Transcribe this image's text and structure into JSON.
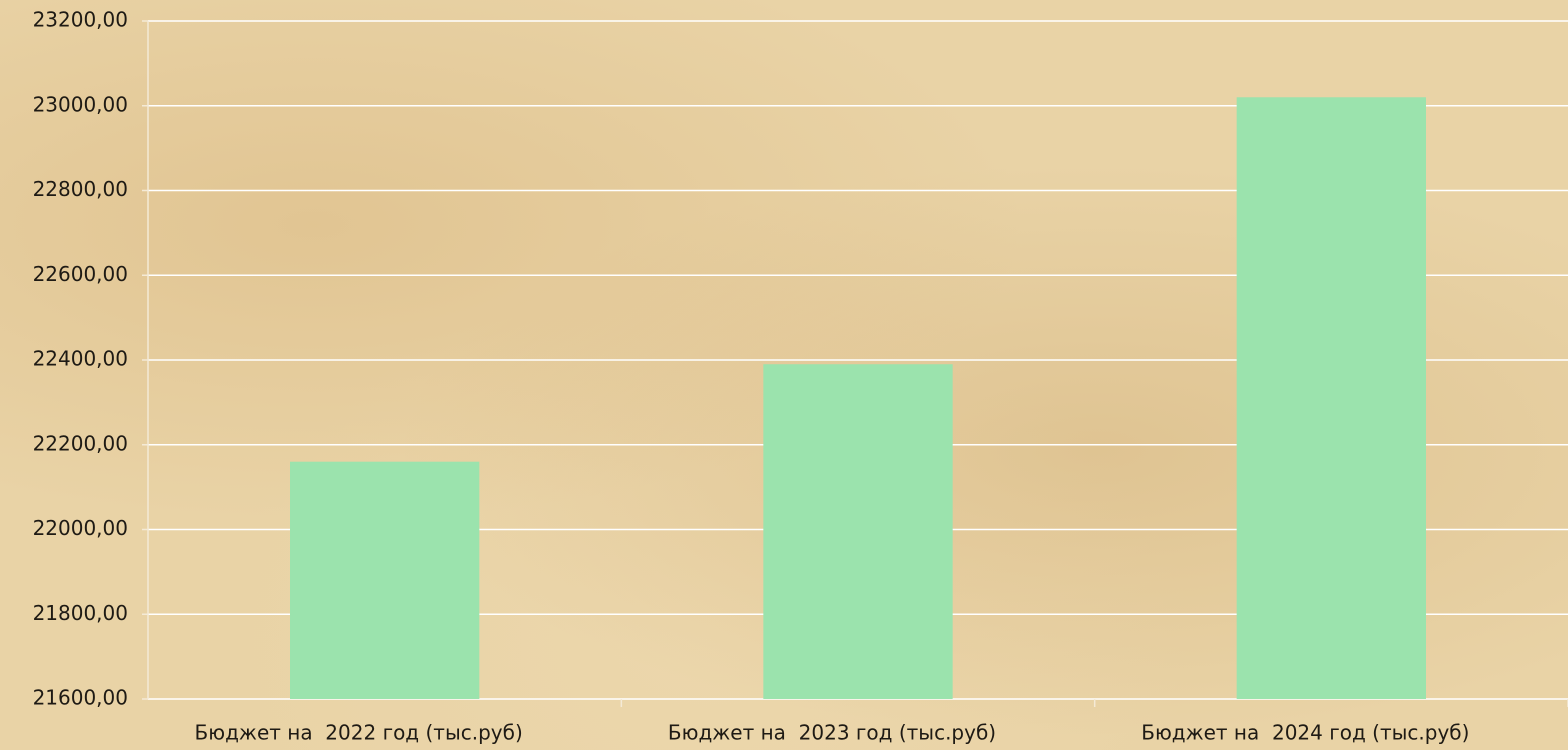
{
  "chart_data": {
    "type": "bar",
    "categories": [
      "Бюджет на  2022 год (тыс.руб)",
      "Бюджет на  2023 год (тыс.руб)",
      "Бюджет на  2024 год (тыс.руб)"
    ],
    "values": [
      22160,
      22390,
      23020
    ],
    "color": "#9be3ad",
    "ylim": [
      21600,
      23200
    ],
    "yticks": [
      {
        "value": 21600,
        "label": "21600,00"
      },
      {
        "value": 21800,
        "label": "21800,00"
      },
      {
        "value": 22000,
        "label": "22000,00"
      },
      {
        "value": 22200,
        "label": "22200,00"
      },
      {
        "value": 22400,
        "label": "22400,00"
      },
      {
        "value": 22600,
        "label": "22600,00"
      },
      {
        "value": 22800,
        "label": "22800,00"
      },
      {
        "value": 23000,
        "label": "23000,00"
      },
      {
        "value": 23200,
        "label": "23200,00"
      }
    ],
    "grid": true
  }
}
